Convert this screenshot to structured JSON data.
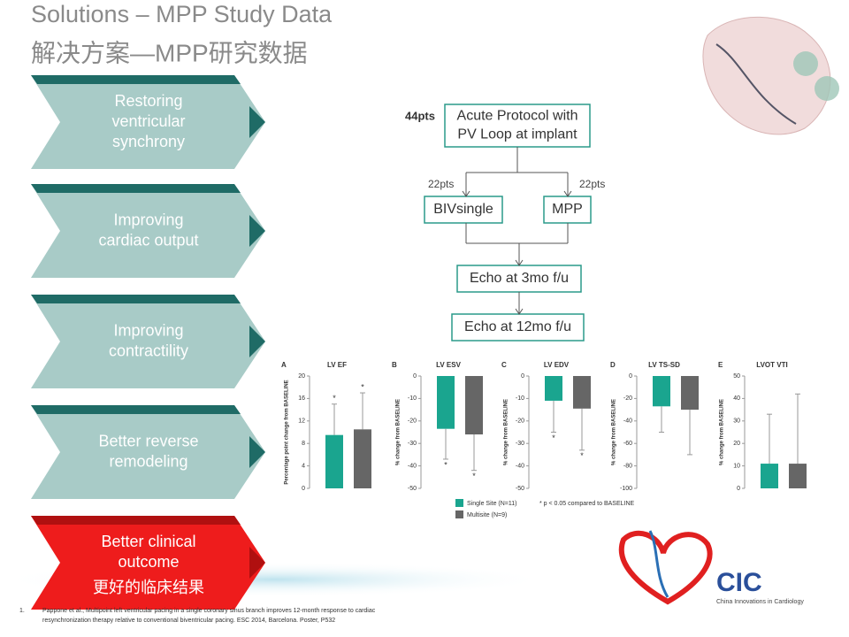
{
  "header": {
    "title": "Solutions – MPP Study Data",
    "subtitle": "解决方案—MPP研究数据"
  },
  "steps": [
    {
      "lines": [
        "Restoring",
        "ventricular",
        "synchrony"
      ]
    },
    {
      "lines": [
        "Improving",
        "cardiac output"
      ]
    },
    {
      "lines": [
        "Improving",
        "contractility"
      ]
    },
    {
      "lines": [
        "Better reverse",
        "remodeling"
      ]
    },
    {
      "lines": [
        "Better clinical",
        "outcome",
        "更好的临床结果"
      ]
    }
  ],
  "flow": {
    "total": "44pts",
    "nodes": [
      [
        "Acute Protocol with",
        "PV Loop at implant"
      ],
      [
        "BIVsingle"
      ],
      [
        "MPP"
      ],
      [
        "Echo at 3mo f/u"
      ],
      [
        "Echo at 12mo f/u"
      ]
    ],
    "branch_labels": [
      "22pts",
      "22pts"
    ]
  },
  "legend": [
    {
      "name": "Single Site (N=11)",
      "color": "#1aa58f"
    },
    {
      "name": "Multisite (N=9)",
      "color": "#666666"
    }
  ],
  "legend_note": "* p < 0.05 compared to BASELINE",
  "chart_data": [
    {
      "type": "bar",
      "panel": "A",
      "title": "LV EF",
      "ylabel": "Percentage point change from BASELINE",
      "values": [
        9.5,
        10.5
      ],
      "errors": [
        5.5,
        6.5
      ],
      "annotations": [
        "*",
        "*"
      ],
      "ylim": [
        0,
        20
      ],
      "yticks": [
        0,
        4,
        8,
        12,
        16,
        20
      ]
    },
    {
      "type": "bar",
      "panel": "B",
      "title": "LV ESV",
      "ylabel": "% change from BASELINE",
      "values": [
        -23.5,
        -26
      ],
      "errors": [
        13.5,
        16
      ],
      "annotations": [
        "*",
        "*"
      ],
      "ylim": [
        -50,
        0
      ],
      "yticks": [
        0,
        -10,
        -20,
        -30,
        -40,
        -50
      ]
    },
    {
      "type": "bar",
      "panel": "C",
      "title": "LV EDV",
      "ylabel": "% change from BASELINE",
      "values": [
        -11,
        -14.5
      ],
      "errors": [
        14,
        18.5
      ],
      "annotations": [
        "*",
        "*"
      ],
      "ylim": [
        -50,
        0
      ],
      "yticks": [
        0,
        -10,
        -20,
        -30,
        -40,
        -50
      ]
    },
    {
      "type": "bar",
      "panel": "D",
      "title": "LV TS-SD",
      "ylabel": "% change from BASELINE",
      "values": [
        -27,
        -30
      ],
      "errors": [
        23,
        40
      ],
      "ylim": [
        -100,
        0
      ],
      "yticks": [
        0,
        -20,
        -40,
        -60,
        -80,
        -100
      ]
    },
    {
      "type": "bar",
      "panel": "E",
      "title": "LVOT VTI",
      "ylabel": "% change from BASELINE",
      "values": [
        11,
        11
      ],
      "errors": [
        22,
        31
      ],
      "ylim": [
        0,
        50
      ],
      "yticks": [
        0,
        10,
        20,
        30,
        40,
        50
      ]
    }
  ],
  "footnote": {
    "number": "1.",
    "lines": [
      "Pappone et al., Multipoint left ventricular pacing in a single coronary sinus branch improves 12-month response to cardiac",
      "resynchronization therapy relative to conventional biventricular pacing.  ESC 2014, Barcelona.  Poster, P532"
    ]
  },
  "logo": {
    "name": "CIC",
    "tagline": "China Innovations in Cardiology"
  }
}
